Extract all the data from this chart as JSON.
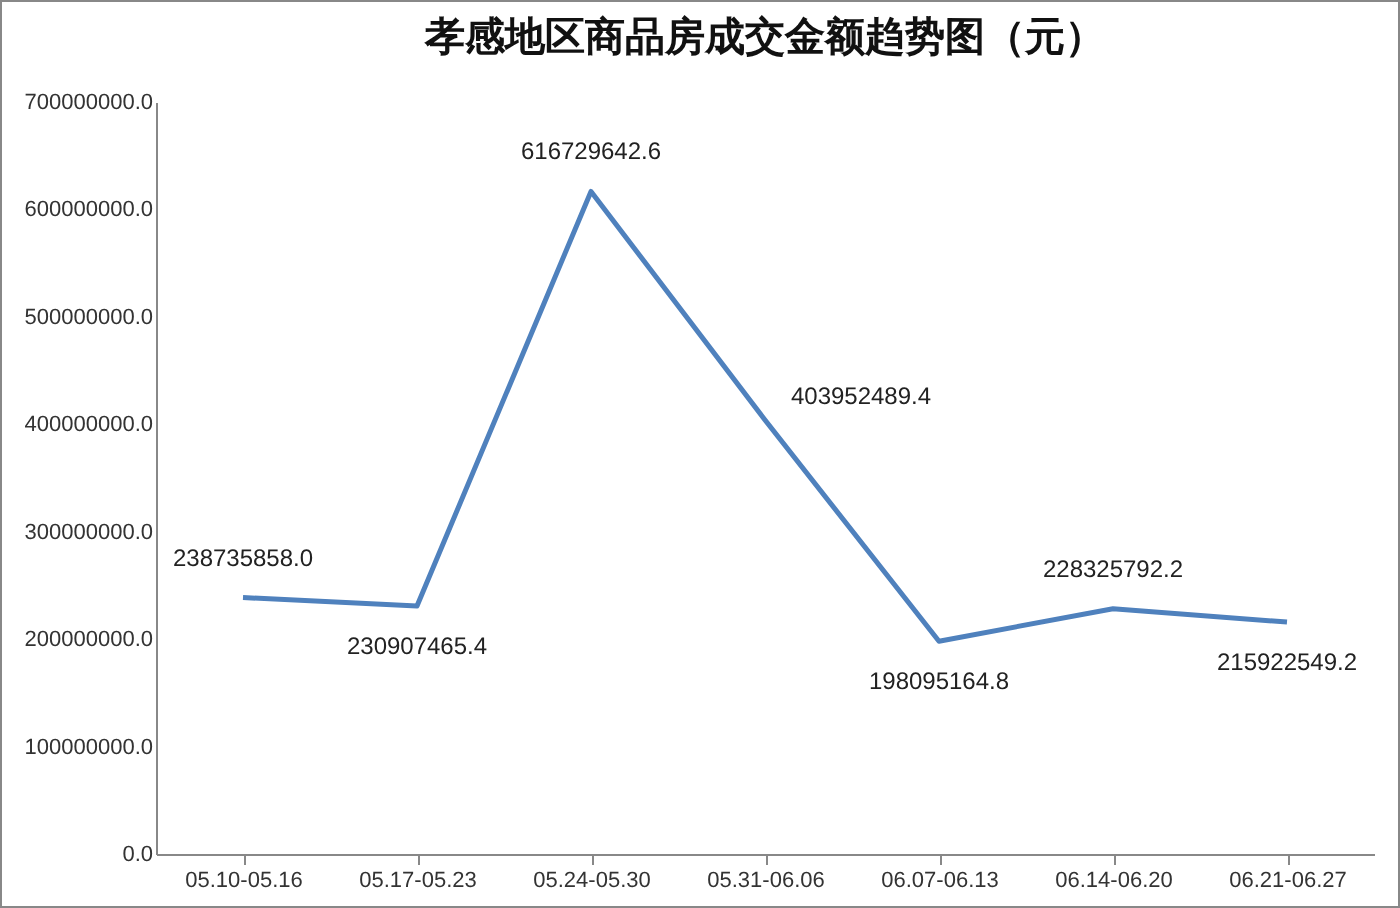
{
  "chart_data": {
    "type": "line",
    "title": "孝感地区商品房成交金额趋势图（元）",
    "categories": [
      "05.10-05.16",
      "05.17-05.23",
      "05.24-05.30",
      "05.31-06.06",
      "06.07-06.13",
      "06.14-06.20",
      "06.21-06.27"
    ],
    "series": [
      {
        "color": "#4f81bd",
        "values": [
          238735858.0,
          230907465.4,
          616729642.6,
          403952489.4,
          198095164.8,
          228325792.2,
          215922549.2
        ],
        "value_labels": [
          "238735858.0",
          "230907465.4",
          "616729642.6",
          "403952489.4",
          "198095164.8",
          "228325792.2",
          "215922549.2"
        ]
      }
    ],
    "ylim": [
      0,
      700000000
    ],
    "yticks": [
      {
        "value": 0,
        "label": "0.0"
      },
      {
        "value": 100000000,
        "label": "100000000.0"
      },
      {
        "value": 200000000,
        "label": "200000000.0"
      },
      {
        "value": 300000000,
        "label": "300000000.0"
      },
      {
        "value": 400000000,
        "label": "400000000.0"
      },
      {
        "value": 500000000,
        "label": "500000000.0"
      },
      {
        "value": 600000000,
        "label": "600000000.0"
      },
      {
        "value": 700000000,
        "label": "700000000.0"
      }
    ],
    "grid": false,
    "legend": false,
    "marker": "none",
    "line_style": "solid"
  }
}
